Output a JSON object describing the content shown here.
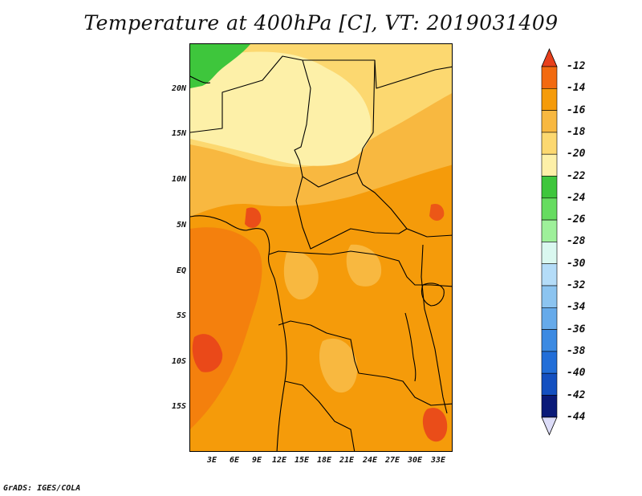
{
  "title": "Temperature at 400hPa [C], VT: 2019031409",
  "credit": "GrADS: IGES/COLA",
  "lat_ticks": [
    "20N",
    "15N",
    "10N",
    "5N",
    "EQ",
    "5S",
    "10S",
    "15S"
  ],
  "lon_ticks": [
    "3E",
    "6E",
    "9E",
    "12E",
    "15E",
    "18E",
    "21E",
    "24E",
    "27E",
    "30E",
    "33E"
  ],
  "legend": {
    "labels": [
      "-12",
      "-14",
      "-16",
      "-18",
      "-20",
      "-22",
      "-24",
      "-26",
      "-28",
      "-30",
      "-32",
      "-34",
      "-36",
      "-38",
      "-40",
      "-42",
      "-44"
    ],
    "colors": [
      "#e8401c",
      "#f26a10",
      "#f59b0a",
      "#f8b840",
      "#fcd870",
      "#fdf0a8",
      "#3ec63c",
      "#66dc60",
      "#9ef09a",
      "#daf8f0",
      "#b4dcf8",
      "#8cc4f0",
      "#66aaea",
      "#3c8ae2",
      "#226ed8",
      "#1450c0",
      "#0a1a78",
      "#dcdcf8"
    ]
  },
  "palette": {
    "warm_orange": "#f26a10",
    "orange": "#f59b0a",
    "light_orange": "#f8b840",
    "pale_yellow": "#fcd870",
    "cream": "#fdf0a8",
    "green": "#3ec63c",
    "red": "#e8401c"
  }
}
